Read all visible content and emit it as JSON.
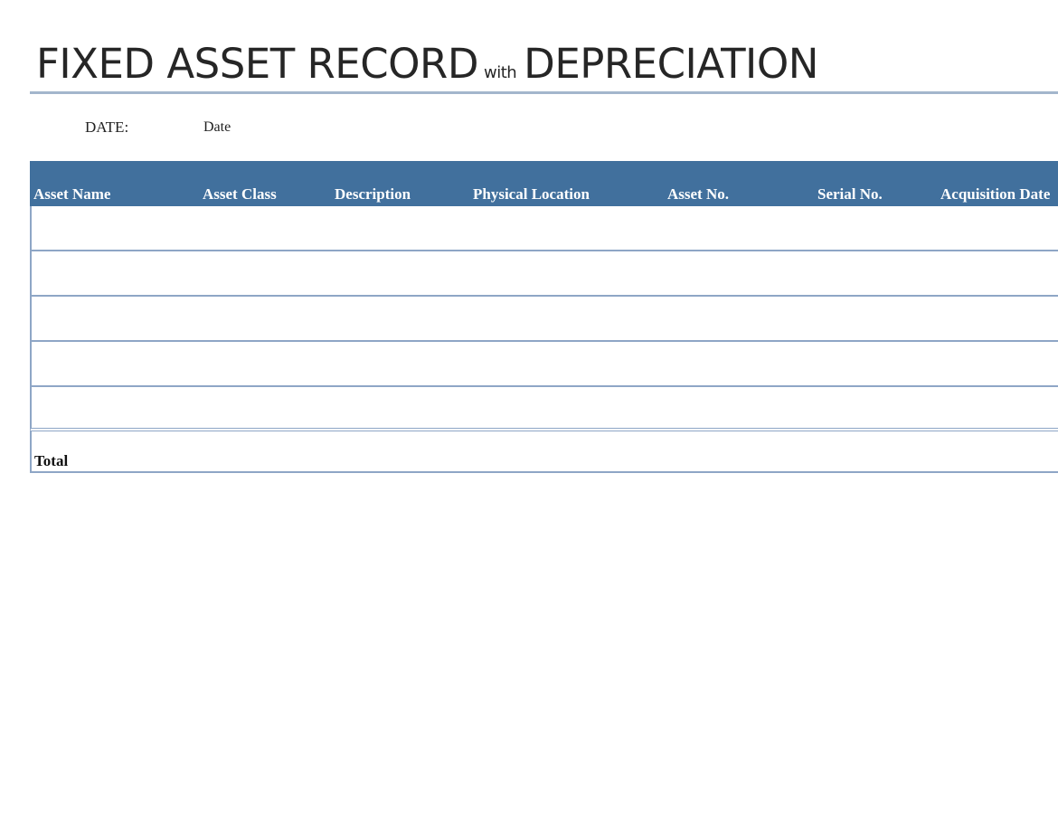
{
  "title": {
    "part1": "FIXED ASSET RECORD",
    "with": "with",
    "part2": "DEPRECIATION"
  },
  "date": {
    "label": "DATE:",
    "value": "Date"
  },
  "table": {
    "columns": [
      "Asset Name",
      "Asset Class",
      "Description",
      "Physical Location",
      "Asset No.",
      "Serial No.",
      "Acquisition Date"
    ],
    "rows": [
      [],
      [],
      [],
      [],
      []
    ],
    "total_label": "Total"
  },
  "colors": {
    "header": "#41709d",
    "border": "#8ea6c6"
  }
}
